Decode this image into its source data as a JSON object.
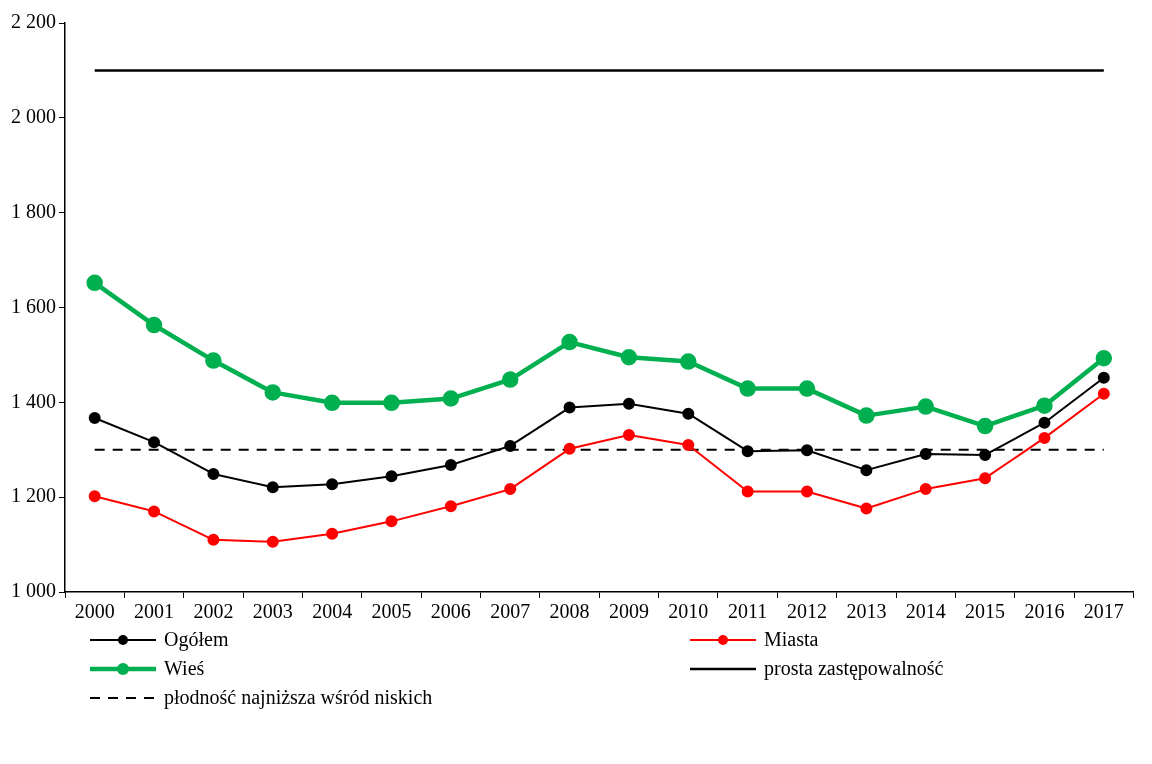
{
  "chart_data": {
    "type": "line",
    "categories": [
      "2000",
      "2001",
      "2002",
      "2003",
      "2004",
      "2005",
      "2006",
      "2007",
      "2008",
      "2009",
      "2010",
      "2011",
      "2012",
      "2013",
      "2014",
      "2015",
      "2016",
      "2017"
    ],
    "series": [
      {
        "name": "Ogółem",
        "color": "#000000",
        "marker": "circle",
        "values": [
          1367,
          1316,
          1249,
          1221,
          1227,
          1244,
          1268,
          1308,
          1389,
          1397,
          1376,
          1297,
          1299,
          1257,
          1291,
          1289,
          1357,
          1452
        ]
      },
      {
        "name": "Miasta",
        "color": "#ff0000",
        "marker": "circle",
        "values": [
          1202,
          1170,
          1110,
          1106,
          1123,
          1149,
          1181,
          1217,
          1302,
          1331,
          1310,
          1212,
          1212,
          1176,
          1217,
          1240,
          1325,
          1418
        ]
      },
      {
        "name": "Wieś",
        "color": "#00b050",
        "marker": "circle",
        "values": [
          1652,
          1563,
          1488,
          1421,
          1399,
          1399,
          1408,
          1448,
          1527,
          1495,
          1486,
          1429,
          1429,
          1372,
          1391,
          1350,
          1393,
          1493
        ]
      },
      {
        "name": "prosta zastępowalność",
        "color": "#000000",
        "marker": "none",
        "line_style": "solid",
        "values": [
          2100,
          2100,
          2100,
          2100,
          2100,
          2100,
          2100,
          2100,
          2100,
          2100,
          2100,
          2100,
          2100,
          2100,
          2100,
          2100,
          2100,
          2100
        ]
      },
      {
        "name": "płodność najniższa wśród niskich",
        "color": "#000000",
        "marker": "none",
        "line_style": "dashed",
        "values": [
          1300,
          1300,
          1300,
          1300,
          1300,
          1300,
          1300,
          1300,
          1300,
          1300,
          1300,
          1300,
          1300,
          1300,
          1300,
          1300,
          1300,
          1300
        ]
      }
    ],
    "ylim": [
      1000,
      2200
    ],
    "yticks": [
      {
        "value": 1000,
        "label": "1 000"
      },
      {
        "value": 1200,
        "label": "1 200"
      },
      {
        "value": 1400,
        "label": "1 400"
      },
      {
        "value": 1600,
        "label": "1 600"
      },
      {
        "value": 1800,
        "label": "1 800"
      },
      {
        "value": 2000,
        "label": "2 000"
      },
      {
        "value": 2200,
        "label": "2 200"
      }
    ],
    "grid": false,
    "legend": "bottom"
  }
}
